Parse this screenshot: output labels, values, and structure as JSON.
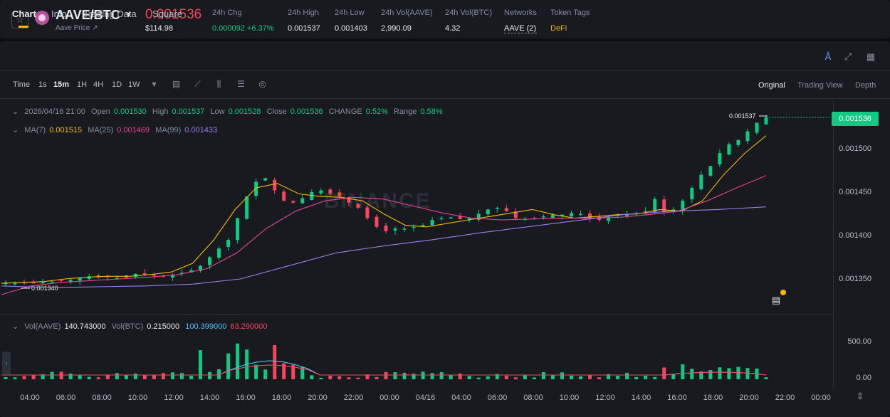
{
  "header": {
    "pair": "AAVE/BTC",
    "sub_label": "Aave Price ↗",
    "price": "0.001536",
    "usd_price": "$114.98",
    "stats": [
      {
        "label": "24h Chg",
        "value": "0.000092 +6.37%"
      },
      {
        "label": "24h High",
        "value": "0.001537"
      },
      {
        "label": "24h Low",
        "value": "0.001403"
      },
      {
        "label": "24h Vol(AAVE)",
        "value": "2,990.09"
      },
      {
        "label": "24h Vol(BTC)",
        "value": "4.32"
      },
      {
        "label": "Networks",
        "value": "AAVE (2)"
      },
      {
        "label": "Token Tags",
        "value": "DeFi"
      }
    ]
  },
  "tabs": [
    "Chart",
    "Info",
    "Trading Data",
    "Square"
  ],
  "toolbar": {
    "timeframes": [
      "Time",
      "1s",
      "15m",
      "1H",
      "4H",
      "1D",
      "1W"
    ],
    "active_timeframe": "15m",
    "views": [
      "Original",
      "Trading View",
      "Depth"
    ],
    "active_view": "Original"
  },
  "ohlc": {
    "date": "2026/04/16 21:00",
    "open_label": "Open",
    "open": "0.001530",
    "high_label": "High",
    "high": "0.001537",
    "low_label": "Low",
    "low": "0.001528",
    "close_label": "Close",
    "close": "0.001536",
    "change_label": "CHANGE",
    "change": "0.52%",
    "range_label": "Range",
    "range": "0.58%"
  },
  "ma": {
    "ma7_label": "MA(7)",
    "ma7": "0.001515",
    "ma25_label": "MA(25)",
    "ma25": "0.001469",
    "ma99_label": "MA(99)",
    "ma99": "0.001433"
  },
  "vol": {
    "aave_label": "Vol(AAVE)",
    "aave": "140.743000",
    "btc_label": "Vol(BTC)",
    "btc": "0.215000",
    "v1": "100.399000",
    "v2": "63.290000"
  },
  "watermark": "BINANCE",
  "chart_data": {
    "type": "candlestick",
    "price_axis": [
      "0.001500",
      "0.001450",
      "0.001400",
      "0.001350"
    ],
    "volume_axis": [
      "500.00",
      "0.00"
    ],
    "current_price": "0.001536",
    "high_marker": "0.001537",
    "low_marker": "0.001340",
    "time_axis": [
      "04:00",
      "06:00",
      "08:00",
      "10:00",
      "12:00",
      "14:00",
      "16:00",
      "18:00",
      "20:00",
      "22:00",
      "00:00",
      "04/16",
      "04:00",
      "06:00",
      "08:00",
      "10:00",
      "12:00",
      "14:00",
      "16:00",
      "18:00",
      "20:00",
      "22:00",
      "00:00"
    ],
    "close_path": [
      0.001346,
      0.001345,
      0.001345,
      0.001346,
      0.001347,
      0.001347,
      0.001348,
      0.001349,
      0.001351,
      0.001353,
      0.001352,
      0.001352,
      0.001351,
      0.001354,
      0.001356,
      0.001355,
      0.001354,
      0.001353,
      0.001355,
      0.001357,
      0.00136,
      0.001365,
      0.001375,
      0.001385,
      0.001395,
      0.00142,
      0.001445,
      0.001462,
      0.001466,
      0.001452,
      0.00144,
      0.001438,
      0.001443,
      0.00145,
      0.001452,
      0.001448,
      0.001445,
      0.001438,
      0.001432,
      0.00142,
      0.00141,
      0.001405,
      0.001408,
      0.001408,
      0.00141,
      0.001412,
      0.001418,
      0.00142,
      0.001421,
      0.001419,
      0.00142,
      0.001425,
      0.00143,
      0.001432,
      0.001428,
      0.00142,
      0.001419,
      0.00142,
      0.001422,
      0.001424,
      0.001424,
      0.001426,
      0.001425,
      0.00142,
      0.001418,
      0.001421,
      0.001424,
      0.001424,
      0.001426,
      0.001428,
      0.001442,
      0.001427,
      0.00143,
      0.00144,
      0.001455,
      0.00147,
      0.00148,
      0.001495,
      0.001505,
      0.00151,
      0.00152,
      0.00153,
      0.001536
    ],
    "ma7": [
      0.001345,
      0.001346,
      0.001347,
      0.00135,
      0.001352,
      0.001353,
      0.001353,
      0.001355,
      0.001358,
      0.001368,
      0.001395,
      0.00143,
      0.001455,
      0.00146,
      0.001448,
      0.001445,
      0.001444,
      0.00144,
      0.001425,
      0.001412,
      0.00141,
      0.001414,
      0.001418,
      0.001422,
      0.001426,
      0.00143,
      0.001424,
      0.00142,
      0.001422,
      0.001424,
      0.001425,
      0.00143,
      0.001428,
      0.00144,
      0.00147,
      0.001495,
      0.001515
    ],
    "ma25": [
      0.001332,
      0.001342,
      0.001346,
      0.001348,
      0.00135,
      0.001352,
      0.001355,
      0.001362,
      0.00138,
      0.001408,
      0.001428,
      0.00144,
      0.001444,
      0.001442,
      0.001434,
      0.001426,
      0.00142,
      0.001418,
      0.001419,
      0.00142,
      0.00142,
      0.001421,
      0.001424,
      0.001428,
      0.00144,
      0.001455,
      0.001469
    ],
    "ma99": [
      0.001342,
      0.00134,
      0.001341,
      0.001342,
      0.001344,
      0.00135,
      0.001365,
      0.00138,
      0.001388,
      0.001395,
      0.001403,
      0.00141,
      0.001417,
      0.001424,
      0.001428,
      0.00143,
      0.001433
    ],
    "series": [
      {
        "name": "MA(7)",
        "color": "#f0b90b"
      },
      {
        "name": "MA(25)",
        "color": "#e84393"
      },
      {
        "name": "MA(99)",
        "color": "#9b7ef0"
      }
    ]
  }
}
